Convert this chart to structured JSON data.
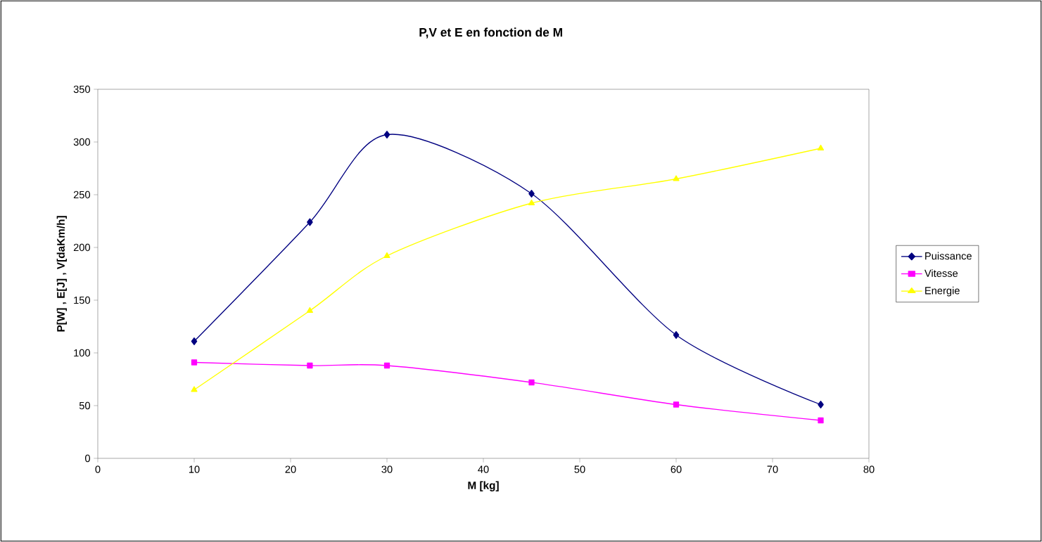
{
  "chart_data": {
    "type": "line",
    "title": "P,V et E en fonction de M",
    "xlabel": "M [kg]",
    "ylabel": "P[W] , E[J] , V[daKm/h]",
    "x": [
      10,
      22,
      30,
      45,
      60,
      75
    ],
    "series": [
      {
        "name": "Puissance",
        "color": "#000080",
        "marker": "diamond",
        "values": [
          111,
          224,
          307,
          251,
          117,
          51
        ]
      },
      {
        "name": "Vitesse",
        "color": "#ff00ff",
        "marker": "square",
        "values": [
          91,
          88,
          88,
          72,
          51,
          36
        ]
      },
      {
        "name": "Energie",
        "color": "#ffff00",
        "marker": "triangle",
        "values": [
          65,
          140,
          192,
          242,
          265,
          294
        ]
      }
    ],
    "xlim": [
      0,
      80
    ],
    "xticks": [
      0,
      10,
      20,
      30,
      40,
      50,
      60,
      70,
      80
    ],
    "ylim": [
      0,
      350
    ],
    "yticks": [
      0,
      50,
      100,
      150,
      200,
      250,
      300,
      350
    ],
    "grid": false,
    "legend": "right",
    "line_style": "solid"
  }
}
